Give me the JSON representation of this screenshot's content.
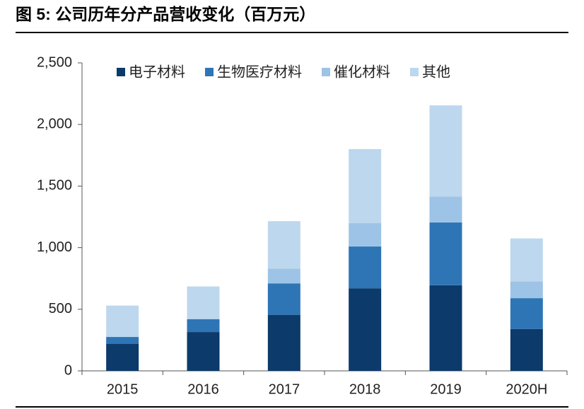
{
  "chart_data": {
    "type": "stacked_bar",
    "title": "图 5: 公司历年分产品营收变化（百万元）",
    "categories": [
      "2015",
      "2016",
      "2017",
      "2018",
      "2019",
      "2020H"
    ],
    "series": [
      {
        "name": "电子材料",
        "color": "#0b3a6b",
        "values": [
          220,
          315,
          455,
          670,
          695,
          340
        ]
      },
      {
        "name": "生物医疗材料",
        "color": "#2e75b6",
        "values": [
          55,
          105,
          255,
          340,
          510,
          250
        ]
      },
      {
        "name": "催化材料",
        "color": "#9dc3e6",
        "values": [
          0,
          0,
          120,
          190,
          210,
          135
        ]
      },
      {
        "name": "其他",
        "color": "#bdd7ee",
        "values": [
          255,
          265,
          385,
          600,
          740,
          350
        ]
      }
    ],
    "ylim": [
      0,
      2500
    ],
    "yticks": [
      0,
      500,
      {
        "value": 1000,
        "label": "1,000"
      },
      {
        "value": 1500,
        "label": "1,500"
      },
      {
        "value": 2000,
        "label": "2,000"
      },
      {
        "value": 2500,
        "label": "2,500"
      }
    ],
    "legend": "top"
  }
}
